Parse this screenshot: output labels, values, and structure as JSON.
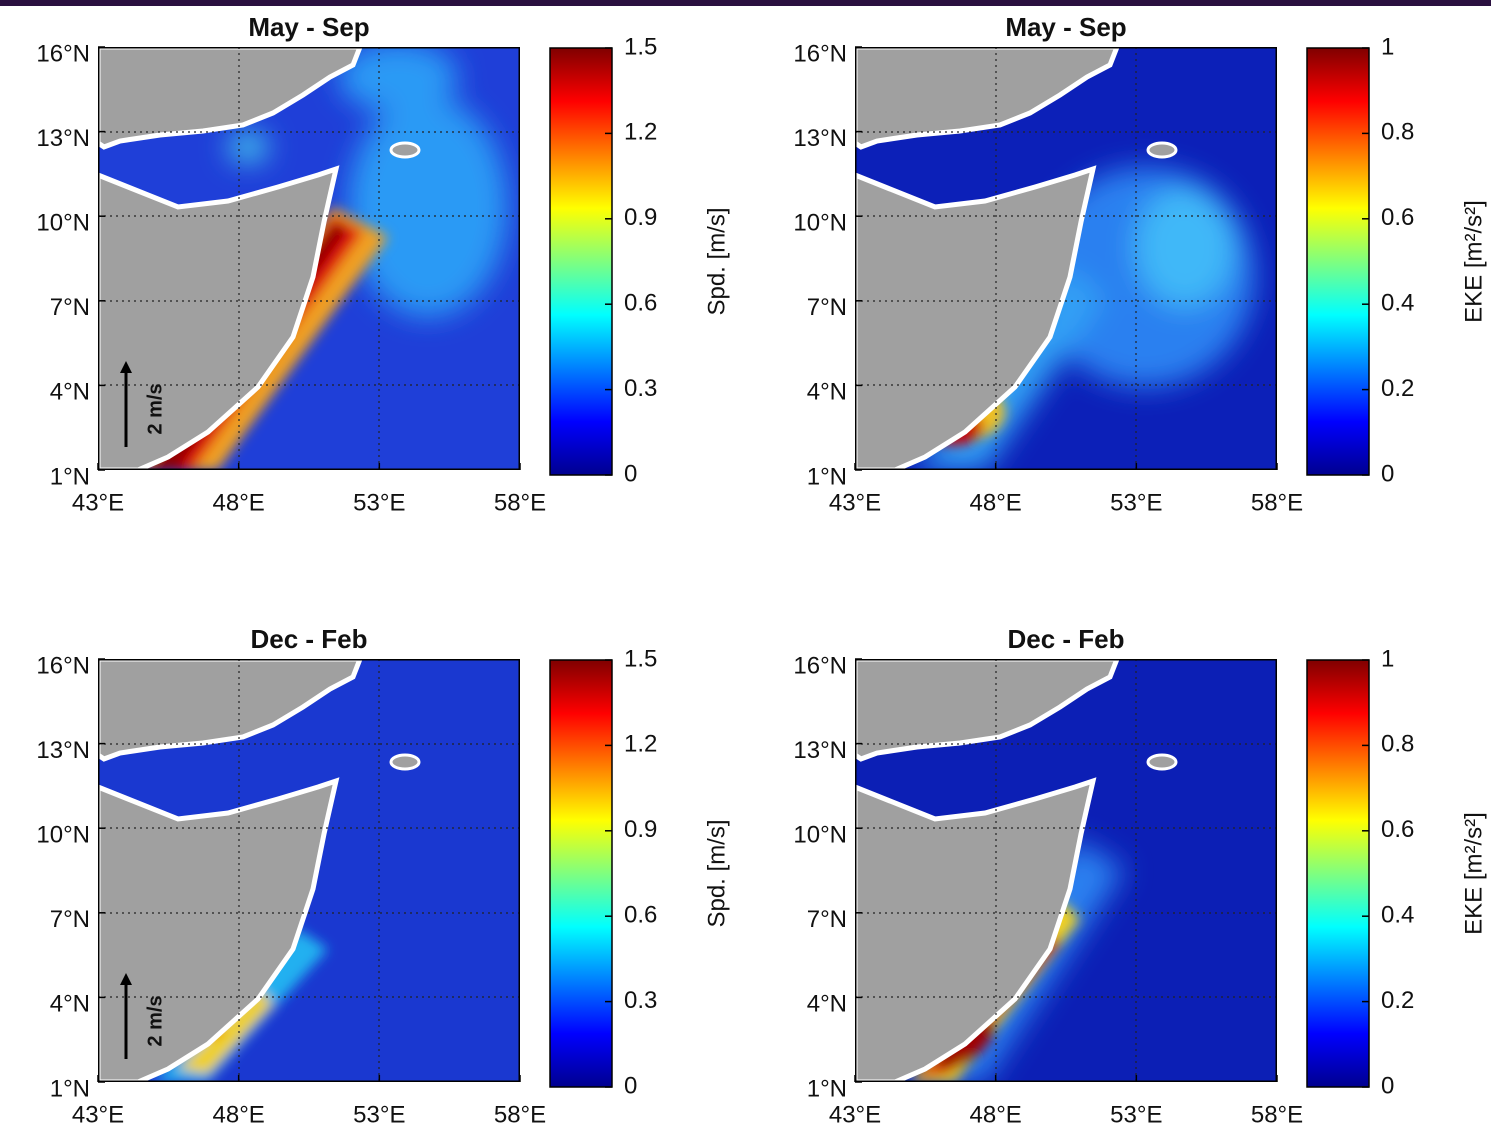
{
  "panels": [
    {
      "title": "May - Sep",
      "lat_ticks": [
        {
          "value": 16,
          "label": "16°N"
        },
        {
          "value": 13,
          "label": "13°N"
        },
        {
          "value": 10,
          "label": "10°N"
        },
        {
          "value": 7,
          "label": "7°N"
        },
        {
          "value": 4,
          "label": "4°N"
        },
        {
          "value": 1,
          "label": "1°N"
        }
      ],
      "lon_ticks": [
        {
          "value": 43,
          "label": "43°E"
        },
        {
          "value": 48,
          "label": "48°E"
        },
        {
          "value": 53,
          "label": "53°E"
        },
        {
          "value": 58,
          "label": "58°E"
        }
      ],
      "latlim": [
        1,
        16
      ],
      "lonlim": [
        43,
        58
      ],
      "colorbar": {
        "label": "Spd. [m/s]",
        "clim": [
          0,
          1.5
        ],
        "ticks": [
          0,
          0.3,
          0.6,
          0.9,
          1.2,
          1.5
        ]
      },
      "scale_label": "2 m/s"
    },
    {
      "title": "May - Sep",
      "lat_ticks": [
        {
          "value": 16,
          "label": "16°N"
        },
        {
          "value": 13,
          "label": "13°N"
        },
        {
          "value": 10,
          "label": "10°N"
        },
        {
          "value": 7,
          "label": "7°N"
        },
        {
          "value": 4,
          "label": "4°N"
        },
        {
          "value": 1,
          "label": "1°N"
        }
      ],
      "lon_ticks": [
        {
          "value": 43,
          "label": "43°E"
        },
        {
          "value": 48,
          "label": "48°E"
        },
        {
          "value": 53,
          "label": "53°E"
        },
        {
          "value": 58,
          "label": "58°E"
        }
      ],
      "latlim": [
        1,
        16
      ],
      "lonlim": [
        43,
        58
      ],
      "colorbar": {
        "label": "EKE [m²/s²]",
        "clim": [
          0,
          1
        ],
        "ticks": [
          0,
          0.2,
          0.4,
          0.6,
          0.8,
          1
        ]
      }
    },
    {
      "title": "Dec - Feb",
      "lat_ticks": [
        {
          "value": 16,
          "label": "16°N"
        },
        {
          "value": 13,
          "label": "13°N"
        },
        {
          "value": 10,
          "label": "10°N"
        },
        {
          "value": 7,
          "label": "7°N"
        },
        {
          "value": 4,
          "label": "4°N"
        },
        {
          "value": 1,
          "label": "1°N"
        }
      ],
      "lon_ticks": [
        {
          "value": 43,
          "label": "43°E"
        },
        {
          "value": 48,
          "label": "48°E"
        },
        {
          "value": 53,
          "label": "53°E"
        },
        {
          "value": 58,
          "label": "58°E"
        }
      ],
      "latlim": [
        1,
        16
      ],
      "lonlim": [
        43,
        58
      ],
      "colorbar": {
        "label": "Spd. [m/s]",
        "clim": [
          0,
          1.5
        ],
        "ticks": [
          0,
          0.3,
          0.6,
          0.9,
          1.2,
          1.5
        ]
      },
      "scale_label": "2 m/s"
    },
    {
      "title": "Dec - Feb",
      "lat_ticks": [
        {
          "value": 16,
          "label": "16°N"
        },
        {
          "value": 13,
          "label": "13°N"
        },
        {
          "value": 10,
          "label": "10°N"
        },
        {
          "value": 7,
          "label": "7°N"
        },
        {
          "value": 4,
          "label": "4°N"
        },
        {
          "value": 1,
          "label": "1°N"
        }
      ],
      "lon_ticks": [
        {
          "value": 43,
          "label": "43°E"
        },
        {
          "value": 48,
          "label": "48°E"
        },
        {
          "value": 53,
          "label": "53°E"
        },
        {
          "value": 58,
          "label": "58°E"
        }
      ],
      "latlim": [
        1,
        16
      ],
      "lonlim": [
        43,
        58
      ],
      "colorbar": {
        "label": "EKE [m²/s²]",
        "clim": [
          0,
          1
        ],
        "ticks": [
          0,
          0.2,
          0.4,
          0.6,
          0.8,
          1
        ]
      }
    }
  ]
}
